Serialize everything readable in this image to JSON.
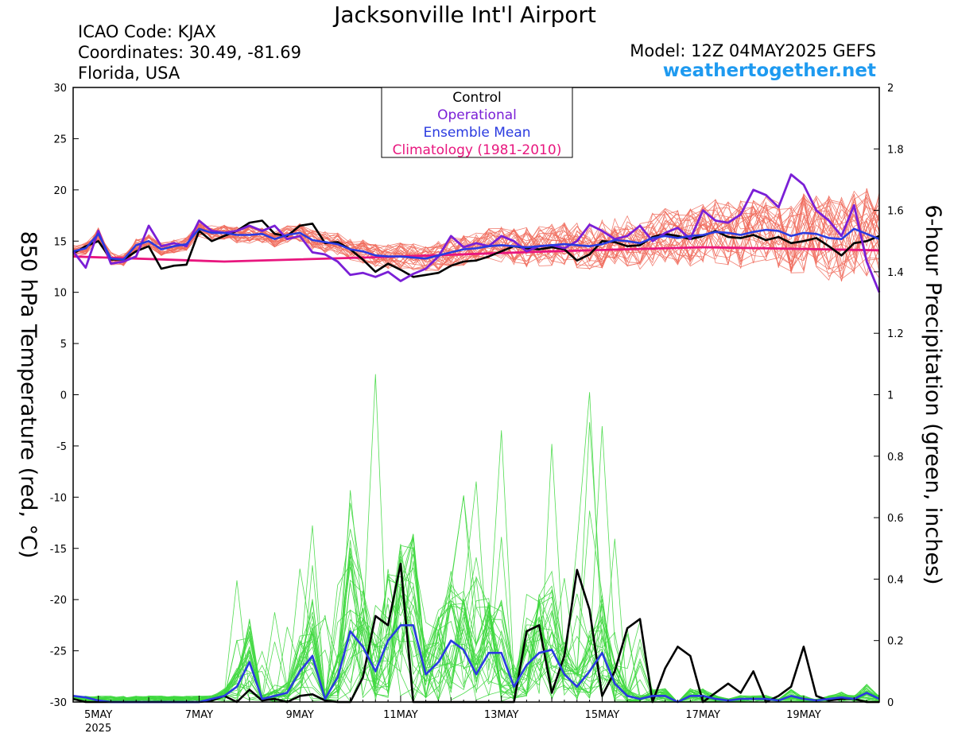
{
  "header": {
    "title": "Jacksonville Int'l Airport",
    "icao": "ICAO Code: KJAX",
    "coordinates": "Coordinates: 30.49, -81.69",
    "region": "Florida, USA",
    "model": "Model: 12Z 04MAY2025 GEFS",
    "website": "weathertogether.net"
  },
  "colors": {
    "control": "#000000",
    "operational": "#7a1fd6",
    "ensemble_mean": "#2a3ae0",
    "climatology": "#e8167e",
    "temp_members": "#f06a5a",
    "precip_members": "#3fd83f",
    "website": "#1e9af0"
  },
  "chart_data": {
    "type": "line",
    "x_unit": "days since 00Z 4 May 2025",
    "xlim": [
      0.5,
      16.5
    ],
    "xticks": [
      {
        "label": "5MAY",
        "sub": "2025",
        "x": 1
      },
      {
        "label": "7MAY",
        "sub": "",
        "x": 3
      },
      {
        "label": "9MAY",
        "sub": "",
        "x": 5
      },
      {
        "label": "11MAY",
        "sub": "",
        "x": 7
      },
      {
        "label": "13MAY",
        "sub": "",
        "x": 9
      },
      {
        "label": "15MAY",
        "sub": "",
        "x": 11
      },
      {
        "label": "17MAY",
        "sub": "",
        "x": 13
      },
      {
        "label": "19MAY",
        "sub": "",
        "x": 15
      }
    ],
    "y_left": {
      "label": "850 hPa Temperature (red, °C)",
      "min": -30,
      "max": 30,
      "ticks": [
        30,
        25,
        20,
        15,
        10,
        5,
        0,
        -5,
        -10,
        -15,
        -20,
        -25,
        -30
      ]
    },
    "y_right": {
      "label": "6-hour Precipitation (green, inches)",
      "min": 0,
      "max": 2,
      "ticks": [
        "2",
        "1.8",
        "1.6",
        "1.4",
        "1.2",
        "1",
        "0.8",
        "0.6",
        "0.4",
        "0.2",
        "0"
      ]
    },
    "legend": {
      "position": "top-center",
      "entries": [
        {
          "name": "Control",
          "color": "#000000"
        },
        {
          "name": "Operational",
          "color": "#7a1fd6"
        },
        {
          "name": "Ensemble Mean",
          "color": "#2a3ae0"
        },
        {
          "name": "Climatology (1981-2010)",
          "color": "#e8167e"
        }
      ]
    },
    "series": [
      {
        "axis": "left",
        "style": "climatology",
        "x": [
          0.5,
          3.5,
          7,
          10,
          13,
          16.5
        ],
        "y": [
          13.5,
          13,
          13.5,
          14,
          14.4,
          14.1
        ]
      },
      {
        "axis": "left",
        "style": "control",
        "x": [
          0.5,
          0.75,
          1,
          1.25,
          1.5,
          1.75,
          2,
          2.25,
          2.5,
          2.75,
          3,
          3.25,
          3.5,
          3.75,
          4,
          4.25,
          4.5,
          4.75,
          5,
          5.25,
          5.5,
          5.75,
          6,
          6.25,
          6.5,
          6.75,
          7,
          7.25,
          7.5,
          7.75,
          8,
          8.25,
          8.5,
          8.75,
          9,
          9.25,
          9.5,
          9.75,
          10,
          10.25,
          10.5,
          10.75,
          11,
          11.25,
          11.5,
          11.75,
          12,
          12.25,
          12.5,
          12.75,
          13,
          13.25,
          13.5,
          13.75,
          14,
          14.25,
          14.5,
          14.75,
          15,
          15.25,
          15.5,
          15.75,
          16,
          16.25,
          16.5
        ],
        "y": [
          13.8,
          14.5,
          15,
          13.2,
          13.2,
          14,
          14.5,
          12.3,
          12.6,
          12.7,
          16,
          15,
          15.5,
          16,
          16.8,
          17,
          15.7,
          15.5,
          16.5,
          16.7,
          14.8,
          14.9,
          14.2,
          13.2,
          12,
          12.8,
          12.2,
          11.5,
          11.7,
          11.9,
          12.6,
          13,
          13.1,
          13.5,
          14,
          14.5,
          14.3,
          14.2,
          14.4,
          14.2,
          13.1,
          13.7,
          15,
          14.9,
          14.5,
          14.6,
          15.4,
          15.7,
          15.5,
          15.2,
          15.5,
          16,
          15.4,
          15.3,
          15.6,
          15.1,
          15.4,
          14.8,
          15,
          15.3,
          14.5,
          13.6,
          14.8,
          15,
          15.5
        ]
      },
      {
        "axis": "left",
        "style": "operational",
        "x": [
          0.5,
          0.75,
          1,
          1.25,
          1.5,
          1.75,
          2,
          2.25,
          2.5,
          2.75,
          3,
          3.25,
          3.5,
          3.75,
          4,
          4.25,
          4.5,
          4.75,
          5,
          5.25,
          5.5,
          5.75,
          6,
          6.25,
          6.5,
          6.75,
          7,
          7.25,
          7.5,
          7.75,
          8,
          8.25,
          8.5,
          8.75,
          9,
          9.25,
          9.5,
          9.75,
          10,
          10.25,
          10.5,
          10.75,
          11,
          11.25,
          11.5,
          11.75,
          12,
          12.25,
          12.5,
          12.75,
          13,
          13.25,
          13.5,
          13.75,
          14,
          14.25,
          14.5,
          14.75,
          15,
          15.25,
          15.5,
          15.75,
          16,
          16.25,
          16.5
        ],
        "y": [
          14,
          12.4,
          16,
          12.8,
          13,
          13.5,
          16.5,
          14.5,
          14.8,
          14.5,
          17,
          16,
          15.8,
          16,
          16.5,
          16,
          16.5,
          15.2,
          15.5,
          13.9,
          13.7,
          13,
          11.7,
          11.9,
          11.5,
          12,
          11.1,
          11.8,
          12.3,
          13.5,
          15.5,
          14.4,
          14.8,
          14.5,
          15.5,
          15,
          14,
          14.5,
          14.6,
          14.3,
          15,
          16.6,
          16,
          15.2,
          15.5,
          16.5,
          15,
          15.8,
          16.3,
          15.2,
          18,
          17,
          16.8,
          17.6,
          20,
          19.5,
          18.3,
          21.5,
          20.5,
          18,
          17,
          15.5,
          18.5,
          13,
          10
        ]
      },
      {
        "axis": "left",
        "style": "ensemble_mean",
        "x": [
          0.5,
          0.75,
          1,
          1.25,
          1.5,
          1.75,
          2,
          2.25,
          2.5,
          2.75,
          3,
          3.25,
          3.5,
          3.75,
          4,
          4.25,
          4.5,
          4.75,
          5,
          5.25,
          5.5,
          5.75,
          6,
          6.25,
          6.5,
          6.75,
          7,
          7.25,
          7.5,
          7.75,
          8,
          8.25,
          8.5,
          8.75,
          9,
          9.25,
          9.5,
          9.75,
          10,
          10.25,
          10.5,
          10.75,
          11,
          11.25,
          11.5,
          11.75,
          12,
          12.25,
          12.5,
          12.75,
          13,
          13.25,
          13.5,
          13.75,
          14,
          14.25,
          14.5,
          14.75,
          15,
          15.25,
          15.5,
          15.75,
          16,
          16.25,
          16.5
        ],
        "y": [
          14,
          14.3,
          15.7,
          13.3,
          13.2,
          14.6,
          15,
          14.2,
          14.5,
          14.7,
          16.2,
          15.8,
          15.8,
          15.6,
          15.6,
          15.7,
          15.2,
          15.6,
          15.8,
          15.1,
          14.9,
          14.7,
          14.2,
          14,
          13.6,
          13.5,
          13.5,
          13.4,
          13.3,
          13.6,
          13.9,
          14.2,
          14.3,
          14.5,
          14.6,
          14.5,
          14.4,
          14.5,
          14.6,
          14.7,
          14.6,
          14.5,
          14.7,
          15.1,
          15,
          14.8,
          15.3,
          15.5,
          15.3,
          15.5,
          15.6,
          15.9,
          15.8,
          15.6,
          15.9,
          16.1,
          16,
          15.5,
          15.8,
          15.7,
          15.3,
          15.2,
          16.2,
          15.7,
          15.2
        ]
      },
      {
        "axis": "right",
        "style": "control",
        "x": [
          0.5,
          0.75,
          1,
          1.25,
          1.5,
          1.75,
          2,
          2.25,
          2.5,
          2.75,
          3,
          3.25,
          3.5,
          3.75,
          4,
          4.25,
          4.5,
          4.75,
          5,
          5.25,
          5.5,
          5.75,
          6,
          6.25,
          6.5,
          6.75,
          7,
          7.25,
          7.5,
          7.75,
          8,
          8.25,
          8.5,
          8.75,
          9,
          9.25,
          9.5,
          9.75,
          10,
          10.25,
          10.5,
          10.75,
          11,
          11.25,
          11.5,
          11.75,
          12,
          12.25,
          12.5,
          12.75,
          13,
          13.25,
          13.5,
          13.75,
          14,
          14.25,
          14.5,
          14.75,
          15,
          15.25,
          15.5,
          15.75,
          16,
          16.25,
          16.5
        ],
        "y": [
          0.01,
          0,
          0,
          0,
          0,
          0,
          0,
          0,
          0,
          0,
          0,
          0.005,
          0.02,
          0,
          0.04,
          0.005,
          0.01,
          0,
          0.02,
          0.025,
          0.005,
          0,
          0,
          0.08,
          0.28,
          0.25,
          0.45,
          0,
          0,
          0,
          0,
          0,
          0,
          0,
          0,
          0,
          0.23,
          0.25,
          0.03,
          0.15,
          0.43,
          0.3,
          0.02,
          0.1,
          0.24,
          0.27,
          0,
          0.11,
          0.18,
          0.15,
          0,
          0.03,
          0.06,
          0.03,
          0.1,
          0,
          0.02,
          0.05,
          0.18,
          0.02,
          0.005,
          0.01,
          0.01,
          0,
          0
        ]
      },
      {
        "axis": "right",
        "style": "ensemble_mean",
        "x": [
          0.5,
          0.75,
          1,
          1.25,
          1.5,
          1.75,
          2,
          2.25,
          2.5,
          2.75,
          3,
          3.25,
          3.5,
          3.75,
          4,
          4.25,
          4.5,
          4.75,
          5,
          5.25,
          5.5,
          5.75,
          6,
          6.25,
          6.5,
          6.75,
          7,
          7.25,
          7.5,
          7.75,
          8,
          8.25,
          8.5,
          8.75,
          9,
          9.25,
          9.5,
          9.75,
          10,
          10.25,
          10.5,
          10.75,
          11,
          11.25,
          11.5,
          11.75,
          12,
          12.25,
          12.5,
          12.75,
          13,
          13.25,
          13.5,
          13.75,
          14,
          14.25,
          14.5,
          14.75,
          15,
          15.25,
          15.5,
          15.75,
          16,
          16.25,
          16.5
        ],
        "y": [
          0.02,
          0.015,
          0.005,
          0,
          0,
          0,
          0,
          0,
          0,
          0,
          0,
          0.01,
          0.02,
          0.05,
          0.13,
          0.01,
          0.02,
          0.03,
          0.1,
          0.15,
          0.01,
          0.08,
          0.23,
          0.18,
          0.1,
          0.2,
          0.25,
          0.25,
          0.09,
          0.13,
          0.2,
          0.17,
          0.09,
          0.16,
          0.16,
          0.05,
          0.12,
          0.16,
          0.17,
          0.09,
          0.05,
          0.1,
          0.16,
          0.06,
          0.02,
          0.01,
          0.02,
          0.02,
          0,
          0.02,
          0.02,
          0.01,
          0.005,
          0.01,
          0.01,
          0.01,
          0.005,
          0.02,
          0.01,
          0.005,
          0.01,
          0.015,
          0.01,
          0.03,
          0.01
        ]
      }
    ]
  }
}
